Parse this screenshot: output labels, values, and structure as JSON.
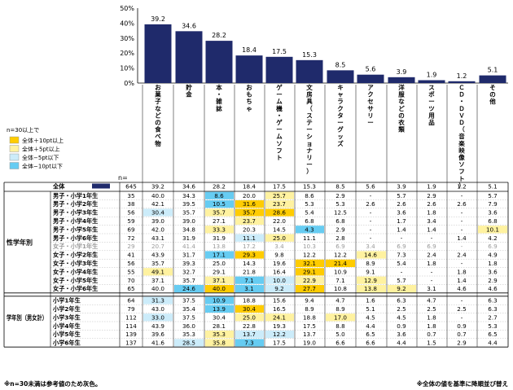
{
  "chart_data": {
    "type": "bar",
    "ylim": [
      0,
      50
    ],
    "y_ticks": [
      "0%",
      "10%",
      "20%",
      "30%",
      "40%",
      "50%"
    ],
    "categories": [
      "お菓子などの食べ物",
      "貯金",
      "本・雑誌",
      "おもちゃ",
      "ゲーム機・ゲームソフト",
      "文房具（ステーショナリー）",
      "キャラクターグッズ",
      "アクセサリー",
      "洋服などの衣類",
      "スポーツ用品",
      "ＣＤ・ＤＶＤ（音楽映像ソフト）",
      "その他"
    ],
    "values": [
      39.2,
      34.6,
      28.2,
      18.4,
      17.5,
      15.3,
      8.5,
      5.6,
      3.9,
      1.9,
      1.2,
      5.1
    ],
    "value_labels": [
      "39.2",
      "34.6",
      "28.2",
      "18.4",
      "17.5",
      "15.3",
      "8.5",
      "5.6",
      "3.9",
      "1.9",
      "1.2",
      "5.1"
    ],
    "bar_color": "#1f2a6b",
    "legend": {
      "title": "n=30以上で",
      "items": [
        {
          "label": "全体＋10pt以上",
          "color": "#ffcc00"
        },
        {
          "label": "全体＋5pt以上",
          "color": "#fff2a0"
        },
        {
          "label": "全体−5pt以下",
          "color": "#ccecfa"
        },
        {
          "label": "全体−10pt以下",
          "color": "#66ccf2"
        }
      ]
    },
    "n_header": "n=",
    "total_row": {
      "label": "全体",
      "n": "645",
      "values": [
        "39.2",
        "34.6",
        "28.2",
        "18.4",
        "17.5",
        "15.3",
        "8.5",
        "5.6",
        "3.9",
        "1.9",
        "1.2",
        "5.1"
      ]
    },
    "sections": [
      {
        "label": "性学年別",
        "rows": [
          {
            "label": "男子・小学1年生",
            "n": "35",
            "values": [
              "40.0",
              "34.3",
              "8.6",
              "20.0",
              "25.7",
              "8.6",
              "2.9",
              "-",
              "5.7",
              "2.9",
              "-",
              "5.7"
            ],
            "hl": [
              "",
              "",
              "D",
              "",
              "L",
              "",
              "",
              "",
              "",
              "",
              "",
              ""
            ]
          },
          {
            "label": "男子・小学2年生",
            "n": "38",
            "values": [
              "42.1",
              "39.5",
              "10.5",
              "31.6",
              "23.7",
              "5.3",
              "5.3",
              "2.6",
              "2.6",
              "2.6",
              "2.6",
              "7.9"
            ],
            "hl": [
              "",
              "",
              "D",
              "H",
              "L",
              "",
              "",
              "",
              "",
              "",
              "",
              ""
            ]
          },
          {
            "label": "男子・小学3年生",
            "n": "56",
            "values": [
              "30.4",
              "35.7",
              "35.7",
              "35.7",
              "28.6",
              "5.4",
              "12.5",
              "-",
              "3.6",
              "1.8",
              "-",
              "3.6"
            ],
            "hl": [
              "S",
              "",
              "L",
              "H",
              "H",
              "",
              "",
              "",
              "",
              "",
              "",
              ""
            ]
          },
          {
            "label": "男子・小学4年生",
            "n": "59",
            "values": [
              "39.0",
              "39.0",
              "27.1",
              "23.7",
              "22.0",
              "6.8",
              "6.8",
              "-",
              "1.7",
              "3.4",
              "-",
              "6.8"
            ],
            "hl": [
              "",
              "",
              "",
              "L",
              "",
              "",
              "",
              "",
              "",
              "",
              "",
              ""
            ]
          },
          {
            "label": "男子・小学5年生",
            "n": "69",
            "values": [
              "42.0",
              "34.8",
              "33.3",
              "20.3",
              "14.5",
              "4.3",
              "2.9",
              "-",
              "1.4",
              "1.4",
              "-",
              "10.1"
            ],
            "hl": [
              "",
              "",
              "L",
              "",
              "",
              "D",
              "",
              "",
              "",
              "",
              "",
              "L"
            ]
          },
          {
            "label": "男子・小学6年生",
            "n": "72",
            "values": [
              "43.1",
              "31.9",
              "31.9",
              "11.1",
              "25.0",
              "11.1",
              "2.8",
              "-",
              "-",
              "-",
              "1.4",
              "4.2"
            ],
            "hl": [
              "",
              "",
              "",
              "S",
              "L",
              "",
              "",
              "",
              "",
              "",
              "",
              ""
            ]
          },
          {
            "label": "女子・小学1年生",
            "n": "29",
            "values": [
              "20.7",
              "41.4",
              "13.8",
              "17.2",
              "3.4",
              "10.3",
              "6.9",
              "3.4",
              "6.9",
              "6.9",
              "-",
              "6.9"
            ],
            "hl": [
              "G",
              "G",
              "G",
              "G",
              "G",
              "G",
              "G",
              "G",
              "G",
              "G",
              "G",
              "G"
            ]
          },
          {
            "label": "女子・小学2年生",
            "n": "41",
            "values": [
              "43.9",
              "31.7",
              "17.1",
              "29.3",
              "9.8",
              "12.2",
              "12.2",
              "14.6",
              "7.3",
              "2.4",
              "2.4",
              "4.9"
            ],
            "hl": [
              "",
              "",
              "D",
              "H",
              "",
              "",
              "",
              "L",
              "",
              "",
              "",
              ""
            ]
          },
          {
            "label": "女子・小学3年生",
            "n": "56",
            "values": [
              "35.7",
              "39.3",
              "25.0",
              "14.3",
              "19.6",
              "32.1",
              "21.4",
              "8.9",
              "5.4",
              "1.8",
              "-",
              "1.8"
            ],
            "hl": [
              "",
              "",
              "",
              "",
              "",
              "H",
              "H",
              "",
              "",
              "",
              "",
              ""
            ]
          },
          {
            "label": "女子・小学4年生",
            "n": "55",
            "values": [
              "49.1",
              "32.7",
              "29.1",
              "21.8",
              "16.4",
              "29.1",
              "10.9",
              "9.1",
              "-",
              "-",
              "1.8",
              "3.6"
            ],
            "hl": [
              "L",
              "",
              "",
              "",
              "",
              "H",
              "",
              "",
              "",
              "",
              "",
              ""
            ]
          },
          {
            "label": "女子・小学5年生",
            "n": "70",
            "values": [
              "37.1",
              "35.7",
              "37.1",
              "7.1",
              "10.0",
              "22.9",
              "7.1",
              "12.9",
              "5.7",
              "-",
              "1.4",
              "2.9"
            ],
            "hl": [
              "",
              "",
              "L",
              "D",
              "S",
              "L",
              "",
              "L",
              "",
              "",
              "",
              ""
            ]
          },
          {
            "label": "女子・小学6年生",
            "n": "65",
            "values": [
              "40.0",
              "24.6",
              "40.0",
              "3.1",
              "9.2",
              "27.7",
              "10.8",
              "13.8",
              "9.2",
              "3.1",
              "4.6",
              "4.6"
            ],
            "hl": [
              "",
              "D",
              "H",
              "D",
              "S",
              "H",
              "",
              "L",
              "L",
              "",
              "",
              ""
            ]
          }
        ]
      },
      {
        "label": "学年別（男女計）",
        "rows": [
          {
            "label": "小学1年生",
            "n": "64",
            "values": [
              "31.3",
              "37.5",
              "10.9",
              "18.8",
              "15.6",
              "9.4",
              "4.7",
              "1.6",
              "6.3",
              "4.7",
              "-",
              "6.3"
            ],
            "hl": [
              "S",
              "",
              "D",
              "",
              "",
              "",
              "",
              "",
              "",
              "",
              "",
              ""
            ]
          },
          {
            "label": "小学2年生",
            "n": "79",
            "values": [
              "43.0",
              "35.4",
              "13.9",
              "30.4",
              "16.5",
              "8.9",
              "8.9",
              "5.1",
              "2.5",
              "2.5",
              "2.5",
              "6.3"
            ],
            "hl": [
              "",
              "",
              "D",
              "H",
              "",
              "",
              "",
              "",
              "",
              "",
              "",
              ""
            ]
          },
          {
            "label": "小学3年生",
            "n": "112",
            "values": [
              "33.0",
              "37.5",
              "30.4",
              "25.0",
              "24.1",
              "18.8",
              "17.0",
              "4.5",
              "4.5",
              "1.8",
              "-",
              "2.7"
            ],
            "hl": [
              "S",
              "",
              "",
              "L",
              "L",
              "",
              "L",
              "",
              "",
              "",
              "",
              ""
            ]
          },
          {
            "label": "小学4年生",
            "n": "114",
            "values": [
              "43.9",
              "36.0",
              "28.1",
              "22.8",
              "19.3",
              "17.5",
              "8.8",
              "4.4",
              "0.9",
              "1.8",
              "0.9",
              "5.3"
            ],
            "hl": [
              "",
              "",
              "",
              "",
              "",
              "",
              "",
              "",
              "",
              "",
              "",
              ""
            ]
          },
          {
            "label": "小学5年生",
            "n": "139",
            "values": [
              "39.6",
              "35.3",
              "35.3",
              "13.7",
              "12.2",
              "13.7",
              "5.0",
              "6.5",
              "3.6",
              "0.7",
              "0.7",
              "6.5"
            ],
            "hl": [
              "",
              "",
              "L",
              "S",
              "S",
              "",
              "",
              "",
              "",
              "",
              "",
              ""
            ]
          },
          {
            "label": "小学6年生",
            "n": "137",
            "values": [
              "41.6",
              "28.5",
              "35.8",
              "7.3",
              "17.5",
              "19.0",
              "6.6",
              "6.6",
              "4.4",
              "1.5",
              "2.9",
              "4.4"
            ],
            "hl": [
              "",
              "S",
              "L",
              "D",
              "",
              "",
              "",
              "",
              "",
              "",
              "",
              ""
            ]
          }
        ]
      }
    ],
    "footnote_left": "※n=30未満は参考値のため灰色。",
    "footnote_right": "※全体の値を基準に降順並び替え"
  }
}
